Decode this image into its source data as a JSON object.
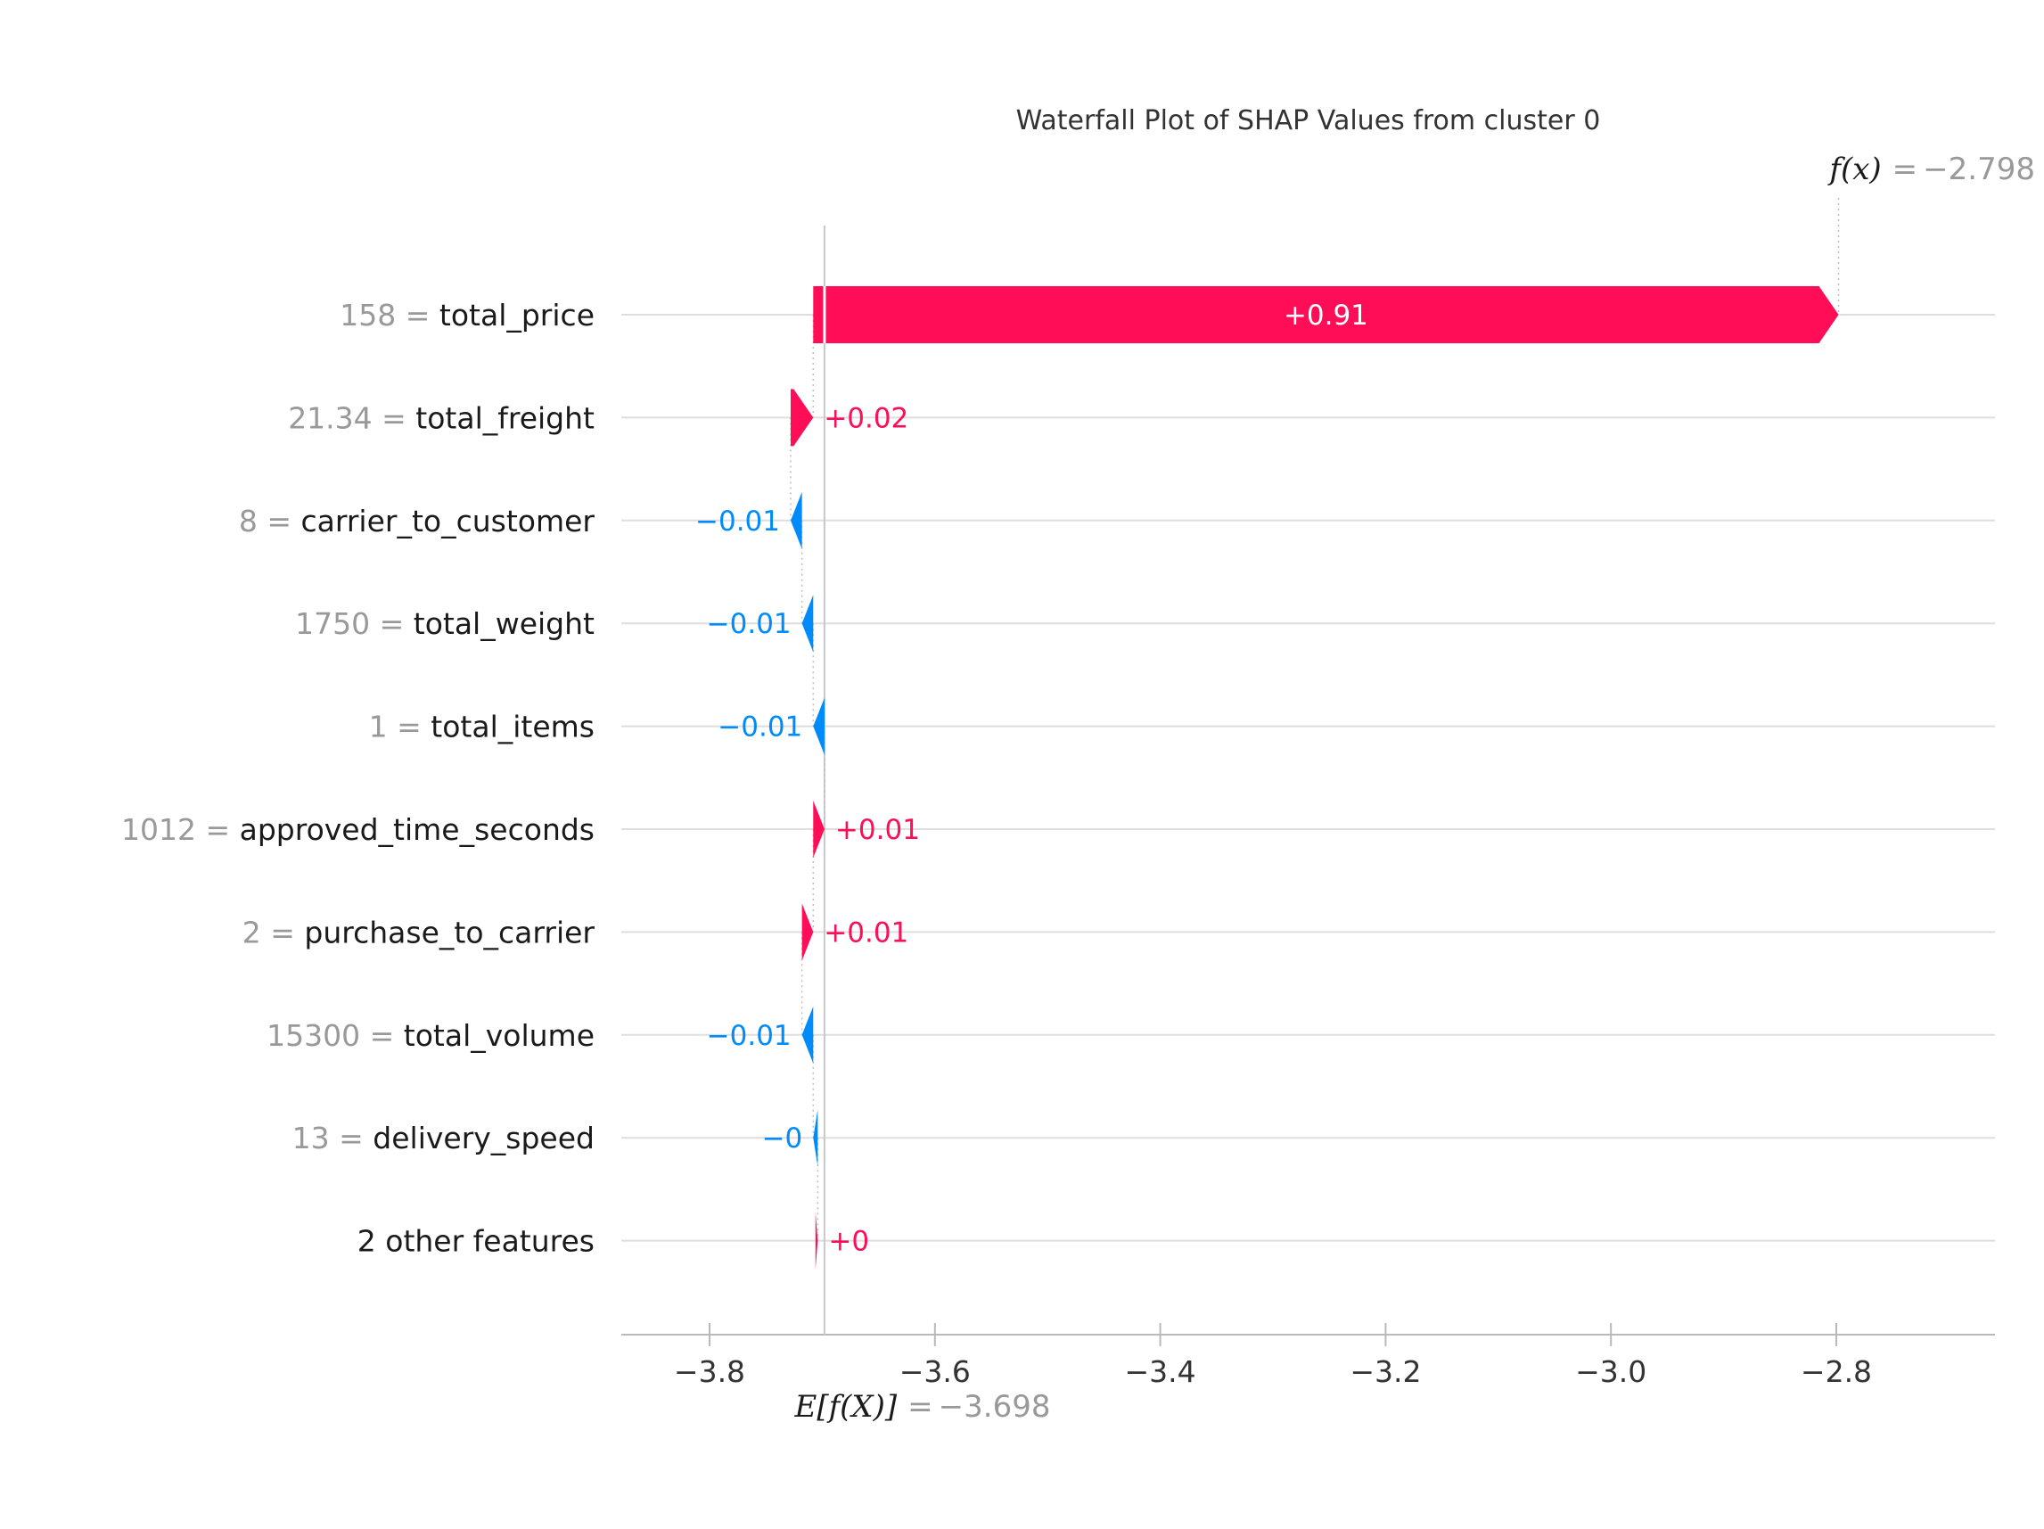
{
  "title": "Waterfall Plot of SHAP Values from cluster 0",
  "fx": {
    "label": "f(x)",
    "eq": "=",
    "value": "−2.798"
  },
  "ef": {
    "label": "E[f(X)]",
    "eq": "=",
    "value": "−3.698"
  },
  "chart_data": {
    "type": "bar",
    "variant": "shap-waterfall",
    "title": "Waterfall Plot of SHAP Values from cluster 0",
    "fx": -2.798,
    "base_value": -3.698,
    "xlabel": "E[f(X)] = −3.698",
    "fx_annotation": "f(x) = −2.798",
    "xlim": [
      -3.88,
      -2.66
    ],
    "x_tick_values": [
      -3.8,
      -3.6,
      -3.4,
      -3.2,
      -3.0,
      -2.8
    ],
    "x_tick_labels": [
      "−3.8",
      "−3.6",
      "−3.4",
      "−3.2",
      "−3.0",
      "−2.8"
    ],
    "grid": "horizontal-rows",
    "legend": "none",
    "colors": {
      "positive": "#ff0d57",
      "negative": "#008bfb",
      "base_line": "#c8c8c8",
      "gridline": "#dedede",
      "axis": "#b9b9b9",
      "connector": "#bfbfbf",
      "value_muted": "#999999",
      "text": "#1a1a1a"
    },
    "rows": [
      {
        "value": "158",
        "feature": "total_price",
        "shap": 0.91,
        "label": "+0.91"
      },
      {
        "value": "21.34",
        "feature": "total_freight",
        "shap": 0.02,
        "label": "+0.02"
      },
      {
        "value": "8",
        "feature": "carrier_to_customer",
        "shap": -0.01,
        "label": "−0.01"
      },
      {
        "value": "1750",
        "feature": "total_weight",
        "shap": -0.01,
        "label": "−0.01"
      },
      {
        "value": "1",
        "feature": "total_items",
        "shap": -0.01,
        "label": "−0.01"
      },
      {
        "value": "1012",
        "feature": "approved_time_seconds",
        "shap": 0.01,
        "label": "+0.01"
      },
      {
        "value": "2",
        "feature": "purchase_to_carrier",
        "shap": 0.01,
        "label": "+0.01"
      },
      {
        "value": "15300",
        "feature": "total_volume",
        "shap": -0.01,
        "label": "−0.01"
      },
      {
        "value": "13",
        "feature": "delivery_speed",
        "shap": -0.004,
        "label": "−0"
      },
      {
        "value": "",
        "feature": "2 other features",
        "shap": 0.002,
        "label": "+0"
      }
    ]
  }
}
